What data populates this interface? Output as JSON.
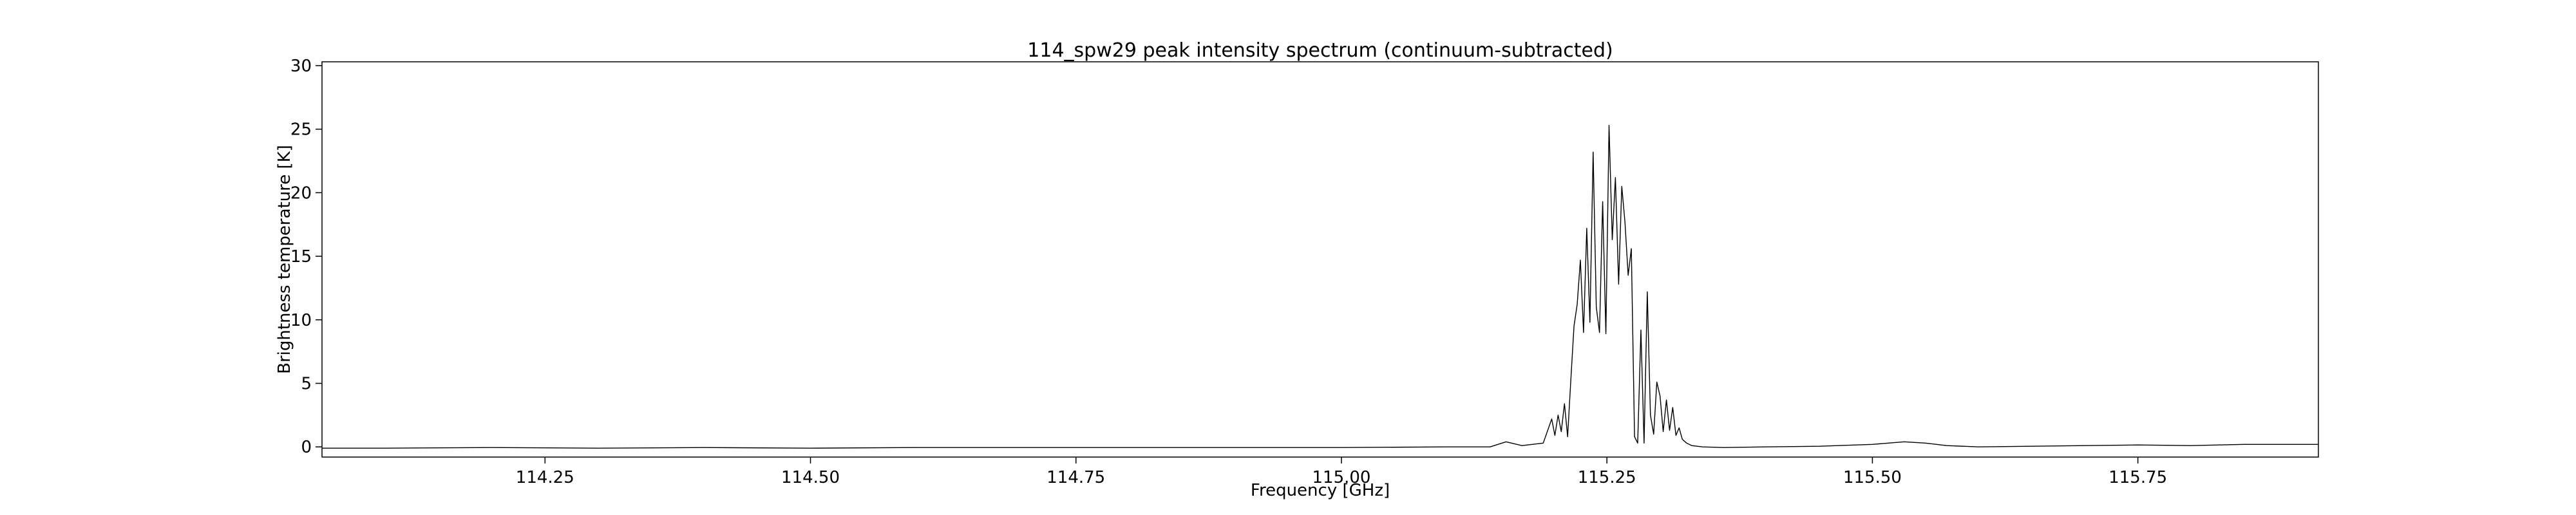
{
  "chart_data": {
    "type": "line",
    "title": "114_spw29 peak intensity spectrum (continuum-subtracted)",
    "xlabel": "Frequency [GHz]",
    "ylabel": "Brightness temperature [K]",
    "xlim": [
      114.04,
      115.92
    ],
    "ylim": [
      -0.8,
      30.3
    ],
    "xticks": [
      114.25,
      114.5,
      114.75,
      115.0,
      115.25,
      115.5,
      115.75
    ],
    "xtick_labels": [
      "114.25",
      "114.50",
      "114.75",
      "115.00",
      "115.25",
      "115.50",
      "115.75"
    ],
    "yticks": [
      0,
      5,
      10,
      15,
      20,
      25,
      30
    ],
    "ytick_labels": [
      "0",
      "5",
      "10",
      "15",
      "20",
      "25",
      "30"
    ],
    "grid": false,
    "series": [
      {
        "color": "#000000",
        "x": [
          114.04,
          114.1,
          114.2,
          114.3,
          114.4,
          114.5,
          114.6,
          114.7,
          114.8,
          114.9,
          115.0,
          115.1,
          115.14,
          115.155,
          115.17,
          115.19,
          115.198,
          115.201,
          115.204,
          115.207,
          115.21,
          115.213,
          115.216,
          115.219,
          115.222,
          115.225,
          115.228,
          115.231,
          115.234,
          115.237,
          115.24,
          115.243,
          115.246,
          115.249,
          115.252,
          115.255,
          115.258,
          115.261,
          115.264,
          115.267,
          115.27,
          115.273,
          115.276,
          115.279,
          115.282,
          115.285,
          115.288,
          115.291,
          115.294,
          115.297,
          115.3,
          115.303,
          115.306,
          115.309,
          115.312,
          115.315,
          115.318,
          115.321,
          115.325,
          115.33,
          115.34,
          115.36,
          115.4,
          115.45,
          115.5,
          115.53,
          115.55,
          115.57,
          115.6,
          115.65,
          115.7,
          115.75,
          115.8,
          115.85,
          115.92
        ],
        "values": [
          -0.1,
          -0.1,
          -0.05,
          -0.1,
          -0.05,
          -0.1,
          -0.05,
          -0.05,
          -0.05,
          -0.05,
          -0.05,
          0.0,
          0.0,
          0.4,
          0.1,
          0.3,
          2.2,
          0.9,
          2.5,
          1.2,
          3.4,
          0.8,
          5.2,
          9.5,
          11.2,
          14.7,
          9.0,
          17.2,
          9.8,
          23.2,
          11.0,
          9.0,
          19.3,
          8.9,
          25.3,
          16.3,
          21.2,
          12.8,
          20.5,
          17.7,
          13.5,
          15.6,
          0.8,
          0.3,
          9.2,
          0.3,
          12.2,
          2.5,
          1.0,
          5.1,
          4.0,
          1.2,
          3.7,
          1.3,
          3.1,
          0.9,
          1.5,
          0.6,
          0.3,
          0.1,
          0.0,
          -0.05,
          0.0,
          0.05,
          0.2,
          0.4,
          0.3,
          0.1,
          0.0,
          0.05,
          0.1,
          0.15,
          0.1,
          0.2,
          0.2
        ]
      }
    ]
  }
}
